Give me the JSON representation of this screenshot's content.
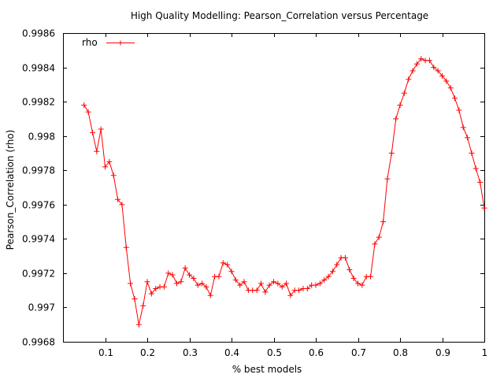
{
  "chart_data": {
    "type": "line",
    "title": "High Quality Modelling: Pearson_Correlation versus Percentage",
    "xlabel": "% best models",
    "ylabel": "Pearson_Correlation (rho)",
    "xlim": [
      0,
      1
    ],
    "ylim": [
      0.9968,
      0.9986
    ],
    "xticks": [
      0.1,
      0.2,
      0.3,
      0.4,
      0.5,
      0.6,
      0.7,
      0.8,
      0.9,
      1
    ],
    "xtick_labels": [
      "0.1",
      "0.2",
      "0.3",
      "0.4",
      "0.5",
      "0.6",
      "0.7",
      "0.8",
      "0.9",
      "1"
    ],
    "yticks": [
      0.9968,
      0.997,
      0.9972,
      0.9974,
      0.9976,
      0.9978,
      0.998,
      0.9982,
      0.9984,
      0.9986
    ],
    "ytick_labels": [
      "0.9968",
      "0.997",
      "0.9972",
      "0.9974",
      "0.9976",
      "0.9978",
      "0.998",
      "0.9982",
      "0.9984",
      "0.9986"
    ],
    "grid": false,
    "legend": "top-left",
    "series": [
      {
        "name": "rho",
        "color": "#ff0000",
        "marker": "plus",
        "x": [
          0.05,
          0.06,
          0.07,
          0.08,
          0.09,
          0.1,
          0.11,
          0.12,
          0.13,
          0.14,
          0.15,
          0.16,
          0.17,
          0.18,
          0.19,
          0.2,
          0.21,
          0.22,
          0.23,
          0.24,
          0.25,
          0.26,
          0.27,
          0.28,
          0.29,
          0.3,
          0.31,
          0.32,
          0.33,
          0.34,
          0.35,
          0.36,
          0.37,
          0.38,
          0.39,
          0.4,
          0.41,
          0.42,
          0.43,
          0.44,
          0.45,
          0.46,
          0.47,
          0.48,
          0.49,
          0.5,
          0.51,
          0.52,
          0.53,
          0.54,
          0.55,
          0.56,
          0.57,
          0.58,
          0.59,
          0.6,
          0.61,
          0.62,
          0.63,
          0.64,
          0.65,
          0.66,
          0.67,
          0.68,
          0.69,
          0.7,
          0.71,
          0.72,
          0.73,
          0.74,
          0.75,
          0.76,
          0.77,
          0.78,
          0.79,
          0.8,
          0.81,
          0.82,
          0.83,
          0.84,
          0.85,
          0.86,
          0.87,
          0.88,
          0.89,
          0.9,
          0.91,
          0.92,
          0.93,
          0.94,
          0.95,
          0.96,
          0.97,
          0.98,
          0.99,
          1.0
        ],
        "y": [
          0.99818,
          0.99814,
          0.99802,
          0.99791,
          0.99804,
          0.99782,
          0.99785,
          0.99777,
          0.99763,
          0.9976,
          0.99735,
          0.99714,
          0.99705,
          0.9969,
          0.99701,
          0.99715,
          0.99708,
          0.99711,
          0.99712,
          0.99712,
          0.9972,
          0.99719,
          0.99714,
          0.99715,
          0.99723,
          0.99719,
          0.99717,
          0.99713,
          0.99714,
          0.99712,
          0.99707,
          0.99718,
          0.99718,
          0.99726,
          0.99725,
          0.99721,
          0.99716,
          0.99713,
          0.99715,
          0.9971,
          0.9971,
          0.9971,
          0.99714,
          0.99709,
          0.99713,
          0.99715,
          0.99714,
          0.99712,
          0.99714,
          0.99707,
          0.9971,
          0.9971,
          0.99711,
          0.99711,
          0.99713,
          0.99713,
          0.99714,
          0.99716,
          0.99718,
          0.99721,
          0.99725,
          0.99729,
          0.99729,
          0.99722,
          0.99717,
          0.99714,
          0.99713,
          0.99718,
          0.99718,
          0.99737,
          0.99741,
          0.9975,
          0.99775,
          0.9979,
          0.9981,
          0.99818,
          0.99825,
          0.99833,
          0.99838,
          0.99842,
          0.99845,
          0.99844,
          0.99844,
          0.9984,
          0.99838,
          0.99835,
          0.99832,
          0.99828,
          0.99822,
          0.99815,
          0.99805,
          0.99799,
          0.9979,
          0.99781,
          0.99773,
          0.99758
        ]
      }
    ]
  }
}
